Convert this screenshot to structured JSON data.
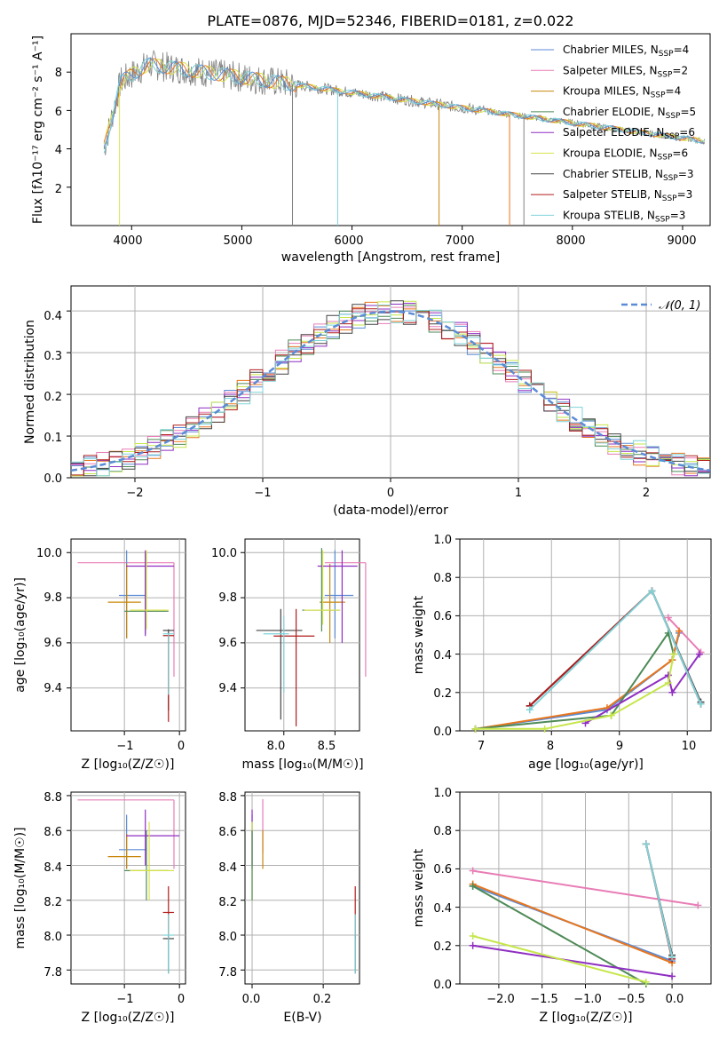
{
  "title": "PLATE=0876, MJD=52346, FIBERID=0181, z=0.022",
  "colors": {
    "Chabrier MILES": "#5b8bd6",
    "Salpeter MILES": "#e87db6",
    "Kroupa MILES": "#c8870a",
    "Chabrier ELODIE": "#4e8a57",
    "Salpeter ELODIE": "#8f2ec2",
    "Kroupa ELODIE": "#d8e34a",
    "Chabrier STELIB": "#444444",
    "Salpeter STELIB": "#b01c1c",
    "Kroupa STELIB": "#7fd3d8",
    "Kroupa MILES line": "#e8761e",
    "Kroupa ELODIE line": "#c6e64a",
    "data": "#808080",
    "normal": "#5b8bd6"
  },
  "spectrum": {
    "xlabel": "wavelength [Angstrom, rest frame]",
    "ylabel_prefix": "Flux [f",
    "ylabel": "Flux [fλ10⁻¹⁷ erg cm⁻² s⁻¹ A⁻¹]",
    "x_ticks": [
      "4000",
      "5000",
      "6000",
      "7000",
      "8000",
      "9000"
    ],
    "y_ticks": [
      "2",
      "4",
      "6",
      "8"
    ],
    "xlim": [
      3450,
      9250
    ],
    "ylim": [
      0,
      10
    ],
    "legend": [
      {
        "name": "Chabrier MILES",
        "nssp": "4"
      },
      {
        "name": "Salpeter MILES",
        "nssp": "2"
      },
      {
        "name": "Kroupa MILES",
        "nssp": "4"
      },
      {
        "name": "Chabrier ELODIE",
        "nssp": "5"
      },
      {
        "name": "Salpeter ELODIE",
        "nssp": "6"
      },
      {
        "name": "Kroupa ELODIE",
        "nssp": "6"
      },
      {
        "name": "Chabrier STELIB",
        "nssp": "3"
      },
      {
        "name": "Salpeter STELIB",
        "nssp": "3"
      },
      {
        "name": "Kroupa STELIB",
        "nssp": "3"
      }
    ]
  },
  "residuals": {
    "xlabel": "(data-model)/error",
    "ylabel": "Normed distribution",
    "x_ticks": [
      "−2",
      "−1",
      "0",
      "1",
      "2"
    ],
    "y_ticks": [
      "0.0",
      "0.1",
      "0.2",
      "0.3",
      "0.4"
    ],
    "legend_label": "𝒩(0, 1)",
    "xlim": [
      -2.5,
      2.5
    ],
    "ylim": [
      0,
      0.46
    ]
  },
  "age_z": {
    "xlabel": "Z [log₁₀(Z/Z☉)]",
    "ylabel": "age  [log₁₀(age/yr)]",
    "x_ticks": [
      "−1",
      "0"
    ],
    "y_ticks": [
      "9.4",
      "9.6",
      "9.8",
      "10.0"
    ]
  },
  "age_mass": {
    "xlabel": "mass [log₁₀(M/M☉)]",
    "x_ticks": [
      "8.0",
      "8.5"
    ],
    "y_ticks": [
      "9.4",
      "9.6",
      "9.8",
      "10.0"
    ]
  },
  "mw_age": {
    "xlabel": "age  [log₁₀(age/yr)]",
    "ylabel": "mass weight",
    "x_ticks": [
      "7",
      "8",
      "9",
      "10"
    ],
    "y_ticks": [
      "0.0",
      "0.2",
      "0.4",
      "0.6",
      "0.8",
      "1.0"
    ]
  },
  "mass_z": {
    "xlabel": "Z [log₁₀(Z/Z☉)]",
    "ylabel": "mass [log₁₀(M/M☉)]",
    "x_ticks": [
      "−1",
      "0"
    ],
    "y_ticks": [
      "7.8",
      "8.0",
      "8.2",
      "8.4",
      "8.6",
      "8.8"
    ]
  },
  "mass_ebv": {
    "xlabel": "E(B-V)",
    "x_ticks": [
      "0.0",
      "0.2"
    ],
    "y_ticks": [
      "7.8",
      "8.0",
      "8.2",
      "8.4",
      "8.6",
      "8.8"
    ]
  },
  "mw_z": {
    "xlabel": "Z [log₁₀(Z/Z☉)]",
    "ylabel": "mass weight",
    "x_ticks": [
      "−2.0",
      "−1.5",
      "−1.0",
      "−0.5",
      "0.0"
    ],
    "y_ticks": [
      "0.0",
      "0.2",
      "0.4",
      "0.6",
      "0.8",
      "1.0"
    ]
  },
  "chart_data": [
    {
      "type": "line",
      "title": "PLATE=0876, MJD=52346, FIBERID=0181, z=0.022",
      "xlabel": "wavelength [Angstrom, rest frame]",
      "ylabel": "Flux [fλ10⁻¹⁷ erg cm⁻² s⁻¹ A⁻¹]",
      "xlim": [
        3450,
        9250
      ],
      "ylim": [
        0,
        10
      ],
      "x": [
        3750,
        3900,
        4100,
        4300,
        4500,
        4800,
        5000,
        5300,
        5600,
        6000,
        6300,
        6600,
        7000,
        7300,
        7600,
        8000,
        8400,
        8800,
        9200
      ],
      "series": [
        {
          "name": "data",
          "values": [
            3.8,
            7.0,
            8.4,
            8.2,
            8.0,
            7.6,
            7.2,
            7.0,
            6.8,
            6.5,
            6.3,
            6.1,
            5.9,
            5.7,
            5.3,
            5.0,
            4.8,
            4.6,
            4.4
          ]
        },
        {
          "name": "Kroupa STELIB",
          "values": [
            4.0,
            7.6,
            8.5,
            8.2,
            8.0,
            7.6,
            7.3,
            7.0,
            6.8,
            6.5,
            6.3,
            6.1,
            5.9,
            5.7,
            5.3,
            5.0,
            4.8,
            4.6,
            4.4
          ]
        }
      ],
      "legend_placement": "top-right"
    },
    {
      "type": "bar",
      "xlabel": "(data-model)/error",
      "ylabel": "Normed distribution",
      "xlim": [
        -2.5,
        2.5
      ],
      "ylim": [
        0,
        0.46
      ],
      "reference": "𝒩(0, 1)",
      "grid": true,
      "legend_placement": "top-right"
    },
    {
      "type": "scatter",
      "xlabel": "age  [log₁₀(age/yr)]",
      "ylabel": "mass weight",
      "xlim": [
        6.65,
        10.35
      ],
      "ylim": [
        0,
        1
      ],
      "series": [
        {
          "name": "Chabrier MILES",
          "x": [
            6.88,
            8.82,
            9.78,
            9.88
          ],
          "y": [
            0.01,
            0.11,
            0.37,
            0.51
          ]
        },
        {
          "name": "Salpeter MILES",
          "x": [
            9.72,
            10.2
          ],
          "y": [
            0.59,
            0.41
          ]
        },
        {
          "name": "Kroupa MILES",
          "x": [
            6.88,
            8.82,
            9.78,
            9.88
          ],
          "y": [
            0.01,
            0.12,
            0.37,
            0.52
          ]
        },
        {
          "name": "Chabrier ELODIE",
          "x": [
            6.88,
            8.88,
            9.72,
            9.8
          ],
          "y": [
            0.01,
            0.08,
            0.51,
            0.4
          ]
        },
        {
          "name": "Salpeter ELODIE",
          "x": [
            8.5,
            9.72,
            9.78,
            10.18
          ],
          "y": [
            0.04,
            0.29,
            0.2,
            0.4
          ]
        },
        {
          "name": "Kroupa ELODIE",
          "x": [
            6.88,
            7.9,
            8.88,
            9.72,
            9.8
          ],
          "y": [
            0.01,
            0.01,
            0.08,
            0.25,
            0.4
          ]
        },
        {
          "name": "Chabrier STELIB",
          "x": [
            7.68,
            9.48,
            10.2
          ],
          "y": [
            0.13,
            0.73,
            0.15
          ]
        },
        {
          "name": "Salpeter STELIB",
          "x": [
            7.68,
            9.48,
            10.2
          ],
          "y": [
            0.13,
            0.73,
            0.14
          ]
        },
        {
          "name": "Kroupa STELIB",
          "x": [
            7.68,
            9.48,
            10.2
          ],
          "y": [
            0.11,
            0.73,
            0.14
          ]
        }
      ]
    },
    {
      "type": "scatter",
      "xlabel": "Z [log₁₀(Z/Z☉)]",
      "ylabel": "mass weight",
      "xlim": [
        -2.45,
        0.45
      ],
      "ylim": [
        0,
        1
      ],
      "series": [
        {
          "name": "Chabrier MILES",
          "x": [
            -2.3,
            0.0
          ],
          "y": [
            0.51,
            0.12
          ]
        },
        {
          "name": "Salpeter MILES",
          "x": [
            -2.3,
            0.3
          ],
          "y": [
            0.59,
            0.41
          ]
        },
        {
          "name": "Kroupa MILES",
          "x": [
            -2.3,
            0.0
          ],
          "y": [
            0.52,
            0.11
          ]
        },
        {
          "name": "Chabrier ELODIE",
          "x": [
            -2.3,
            -0.3
          ],
          "y": [
            0.51,
            0.0
          ]
        },
        {
          "name": "Salpeter ELODIE",
          "x": [
            -2.3,
            0.0
          ],
          "y": [
            0.2,
            0.04
          ]
        },
        {
          "name": "Kroupa ELODIE",
          "x": [
            -2.3,
            -0.3
          ],
          "y": [
            0.25,
            0.01
          ]
        },
        {
          "name": "Chabrier STELIB",
          "x": [
            -0.3,
            0.0
          ],
          "y": [
            0.73,
            0.15
          ]
        },
        {
          "name": "Salpeter STELIB",
          "x": [
            -0.3,
            0.0
          ],
          "y": [
            0.73,
            0.13
          ]
        },
        {
          "name": "Kroupa STELIB",
          "x": [
            -0.3,
            0.0
          ],
          "y": [
            0.73,
            0.14
          ]
        }
      ]
    }
  ]
}
